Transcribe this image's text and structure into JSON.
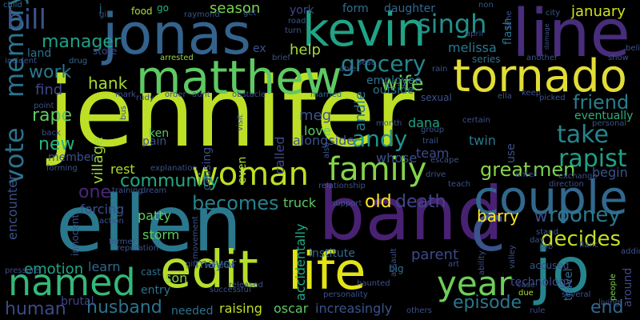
{
  "words": [
    {
      "text": "jennifer",
      "color": "#bddf26"
    },
    {
      "text": "ellen",
      "color": "#2a788e"
    },
    {
      "text": "band",
      "color": "#482173"
    },
    {
      "text": "jonas",
      "color": "#33638d"
    },
    {
      "text": "line",
      "color": "#472d7b"
    },
    {
      "text": "matthew",
      "color": "#5ec962"
    },
    {
      "text": "kevin",
      "color": "#20a386"
    },
    {
      "text": "tornado",
      "color": "#e1dd37"
    },
    {
      "text": "couple",
      "color": "#31688e"
    },
    {
      "text": "jo",
      "color": "#25858e"
    },
    {
      "text": "edit",
      "color": "#b5de2b"
    },
    {
      "text": "life",
      "color": "#e2e418"
    },
    {
      "text": "named",
      "color": "#35b779"
    },
    {
      "text": "woman",
      "color": "#bddf26"
    },
    {
      "text": "family",
      "color": "#84d44b"
    },
    {
      "text": "vote",
      "color": "#2c728e"
    },
    {
      "text": "memory",
      "color": "#2c728e"
    },
    {
      "text": "year",
      "color": "#6ece58"
    },
    {
      "text": "c",
      "color": "#3b528b"
    },
    {
      "text": "bill",
      "color": "#3b528b"
    },
    {
      "text": "grocery",
      "color": "#25858e"
    },
    {
      "text": "singh",
      "color": "#21918c"
    },
    {
      "text": "manager",
      "color": "#1fa187"
    },
    {
      "text": "work",
      "color": "#2a788e"
    },
    {
      "text": "help",
      "color": "#a5db36"
    },
    {
      "text": "wife",
      "color": "#73d056"
    },
    {
      "text": "hank",
      "color": "#a5db36"
    },
    {
      "text": "find",
      "color": "#3e4989"
    },
    {
      "text": "rape",
      "color": "#5ec962"
    },
    {
      "text": "new",
      "color": "#2ab07f"
    },
    {
      "text": "andy",
      "color": "#21918c"
    },
    {
      "text": "take",
      "color": "#25858e"
    },
    {
      "text": "rapist",
      "color": "#1fa187"
    },
    {
      "text": "friend",
      "color": "#277f8e"
    },
    {
      "text": "community",
      "color": "#22a884"
    },
    {
      "text": "village",
      "color": "#a0da39"
    },
    {
      "text": "great",
      "color": "#89d548"
    },
    {
      "text": "men",
      "color": "#7ad151"
    },
    {
      "text": "becomes",
      "color": "#26818e"
    },
    {
      "text": "encounter",
      "color": "#3b528b"
    },
    {
      "text": "one",
      "color": "#482878"
    },
    {
      "text": "old",
      "color": "#fde725"
    },
    {
      "text": "death",
      "color": "#414487"
    },
    {
      "text": "barry",
      "color": "#fde725"
    },
    {
      "text": "rooney",
      "color": "#2a788e"
    },
    {
      "text": "decides",
      "color": "#c2df23"
    },
    {
      "text": "w",
      "color": "#3b528b"
    },
    {
      "text": "human",
      "color": "#3e4989"
    },
    {
      "text": "husband",
      "color": "#2c728e"
    },
    {
      "text": "end",
      "color": "#31688e"
    },
    {
      "text": "episode",
      "color": "#2a788e"
    },
    {
      "text": "parent",
      "color": "#3e4989"
    },
    {
      "text": "raising",
      "color": "#c2df23"
    },
    {
      "text": "oscar",
      "color": "#5ec962"
    },
    {
      "text": "increasingly",
      "color": "#3b528b"
    },
    {
      "text": "january",
      "color": "#d0e11c"
    },
    {
      "text": "season",
      "color": "#7ad151"
    },
    {
      "text": "meg",
      "color": "#3b528b"
    },
    {
      "text": "andie",
      "color": "#2a788e"
    },
    {
      "text": "emotion",
      "color": "#20a386"
    },
    {
      "text": "forcing",
      "color": "#3b528b"
    },
    {
      "text": "patty",
      "color": "#5ec962"
    },
    {
      "text": "learn",
      "color": "#31688e"
    },
    {
      "text": "entry",
      "color": "#2c728e"
    },
    {
      "text": "needed",
      "color": "#2c728e"
    },
    {
      "text": "son",
      "color": "#84d44b"
    },
    {
      "text": "truck",
      "color": "#5ec962"
    },
    {
      "text": "institute",
      "color": "#31688e"
    },
    {
      "text": "accidentally",
      "color": "#22a884"
    },
    {
      "text": "begin",
      "color": "#3b528b"
    },
    {
      "text": "eventually",
      "color": "#2ab07f"
    },
    {
      "text": "love",
      "color": "#5ec962"
    },
    {
      "text": "dana",
      "color": "#20a386"
    },
    {
      "text": "team",
      "color": "#3e4989"
    },
    {
      "text": "twin",
      "color": "#2a788e"
    },
    {
      "text": "called",
      "color": "#3e4989"
    },
    {
      "text": "causing",
      "color": "#3b528b"
    },
    {
      "text": "alongside",
      "color": "#3b528b"
    },
    {
      "text": "even",
      "color": "#addc30"
    },
    {
      "text": "member",
      "color": "#3b528b"
    },
    {
      "text": "whose",
      "color": "#3b528b"
    },
    {
      "text": "river",
      "color": "#3e4989"
    },
    {
      "text": "main",
      "color": "#440154"
    },
    {
      "text": "beyond",
      "color": "#b5de2b"
    },
    {
      "text": "meet",
      "color": "#31688e"
    },
    {
      "text": "honey",
      "color": "#2c728e"
    },
    {
      "text": "ken",
      "color": "#5ec962"
    },
    {
      "text": "pain",
      "color": "#3b528b"
    },
    {
      "text": "rest",
      "color": "#addc30"
    },
    {
      "text": "mayor",
      "color": "#2c728e"
    },
    {
      "text": "storm",
      "color": "#5ec962"
    },
    {
      "text": "land",
      "color": "#2c728e"
    },
    {
      "text": "store",
      "color": "#3e4989"
    },
    {
      "text": "j",
      "color": "#2a788e"
    },
    {
      "text": "food",
      "color": "#addc30"
    },
    {
      "text": "go",
      "color": "#2ab07f"
    },
    {
      "text": "ex",
      "color": "#3b528b"
    },
    {
      "text": "york",
      "color": "#3e4989"
    },
    {
      "text": "form",
      "color": "#2c728e"
    },
    {
      "text": "daughter",
      "color": "#31688e"
    },
    {
      "text": "flash",
      "color": "#2c728e"
    },
    {
      "text": "melissa",
      "color": "#2a788e"
    },
    {
      "text": "employee",
      "color": "#2c728e"
    },
    {
      "text": "outside",
      "color": "#2c728e"
    },
    {
      "text": "use",
      "color": "#3b528b"
    },
    {
      "text": "travel",
      "color": "#31688e"
    },
    {
      "text": "around",
      "color": "#3e4989"
    },
    {
      "text": "people",
      "color": "#7ad151"
    },
    {
      "text": "accused",
      "color": "#3b528b"
    },
    {
      "text": "trial",
      "color": "#3b528b"
    },
    {
      "text": "scene",
      "color": "#fde725"
    },
    {
      "text": "technology",
      "color": "#3e4989"
    },
    {
      "text": "brutal",
      "color": "#414487"
    },
    {
      "text": "child",
      "color": "#31688e"
    },
    {
      "text": "drug",
      "color": "#31688e"
    },
    {
      "text": "arrested",
      "color": "#8fd744"
    },
    {
      "text": "sexual",
      "color": "#3b528b"
    },
    {
      "text": "innocent",
      "color": "#3b528b"
    },
    {
      "text": "cast",
      "color": "#2c728e"
    },
    {
      "text": "movement",
      "color": "#3b528b"
    },
    {
      "text": "reputation",
      "color": "#3b528b"
    },
    {
      "text": "series",
      "color": "#2c728e"
    },
    {
      "text": "action",
      "color": "#3b528b"
    },
    {
      "text": "dream",
      "color": "#3b528b"
    },
    {
      "text": "assault",
      "color": "#3b528b"
    },
    {
      "text": "valley",
      "color": "#3b528b"
    },
    {
      "text": "big",
      "color": "#2c728e"
    },
    {
      "text": "others",
      "color": "#3b528b"
    },
    {
      "text": "rule",
      "color": "#3e4989"
    },
    {
      "text": "several",
      "color": "#3b528b"
    },
    {
      "text": "case",
      "color": "#3b528b"
    },
    {
      "text": "due",
      "color": "#addc30"
    },
    {
      "text": "job",
      "color": "#3b528b"
    },
    {
      "text": "fianc",
      "color": "#3b528b"
    },
    {
      "text": "day",
      "color": "#3b528b"
    },
    {
      "text": "stand",
      "color": "#3b528b"
    },
    {
      "text": "addict",
      "color": "#3b528b"
    },
    {
      "text": "art",
      "color": "#3b528b"
    },
    {
      "text": "gift",
      "color": "#3b528b"
    },
    {
      "text": "pressure",
      "color": "#3e4989"
    },
    {
      "text": "former",
      "color": "#3b528b"
    },
    {
      "text": "window",
      "color": "#3b528b"
    },
    {
      "text": "successful",
      "color": "#3b528b"
    },
    {
      "text": "released",
      "color": "#3b528b"
    },
    {
      "text": "haunted",
      "color": "#3b528b"
    },
    {
      "text": "personality",
      "color": "#3b528b"
    },
    {
      "text": "living",
      "color": "#3b528b"
    },
    {
      "text": "order",
      "color": "#3b528b"
    },
    {
      "text": "aunt",
      "color": "#3b528b"
    },
    {
      "text": "obstacle",
      "color": "#3b528b"
    },
    {
      "text": "married",
      "color": "#2c728e"
    },
    {
      "text": "brief",
      "color": "#3b528b"
    },
    {
      "text": "another",
      "color": "#3b528b"
    },
    {
      "text": "show",
      "color": "#3b528b"
    },
    {
      "text": "ella",
      "color": "#3b528b"
    },
    {
      "text": "keep",
      "color": "#3b528b"
    },
    {
      "text": "picked",
      "color": "#3b528b"
    },
    {
      "text": "non",
      "color": "#3b528b"
    },
    {
      "text": "gil",
      "color": "#3b528b"
    },
    {
      "text": "raymond",
      "color": "#3b528b"
    },
    {
      "text": "get",
      "color": "#3b528b"
    },
    {
      "text": "road",
      "color": "#3b528b"
    },
    {
      "text": "turn",
      "color": "#3b528b"
    },
    {
      "text": "april",
      "color": "#3b528b"
    },
    {
      "text": "city",
      "color": "#3b528b"
    },
    {
      "text": "belief",
      "color": "#3b528b"
    },
    {
      "text": "incident",
      "color": "#3b528b"
    },
    {
      "text": "able",
      "color": "#3b528b"
    },
    {
      "text": "best",
      "color": "#3b528b"
    },
    {
      "text": "rain",
      "color": "#3b528b"
    },
    {
      "text": "point",
      "color": "#3b528b"
    },
    {
      "text": "mark",
      "color": "#3b528b"
    },
    {
      "text": "rudy",
      "color": "#3b528b"
    },
    {
      "text": "visit",
      "color": "#3b528b"
    },
    {
      "text": "month",
      "color": "#3b528b"
    },
    {
      "text": "certain",
      "color": "#3b528b"
    },
    {
      "text": "group",
      "color": "#3b528b"
    },
    {
      "text": "trail",
      "color": "#3b528b"
    },
    {
      "text": "escape",
      "color": "#3b528b"
    },
    {
      "text": "personal",
      "color": "#3b528b"
    },
    {
      "text": "back",
      "color": "#3b528b"
    },
    {
      "text": "forming",
      "color": "#3b528b"
    },
    {
      "text": "explanation",
      "color": "#3b528b"
    },
    {
      "text": "teach",
      "color": "#3b528b"
    },
    {
      "text": "direction",
      "color": "#3b528b"
    },
    {
      "text": "exchange",
      "color": "#3b528b"
    },
    {
      "text": "enter",
      "color": "#3b528b"
    },
    {
      "text": "training",
      "color": "#3b528b"
    },
    {
      "text": "support",
      "color": "#3b528b"
    },
    {
      "text": "drive",
      "color": "#3b528b"
    },
    {
      "text": "relationship",
      "color": "#3b528b"
    },
    {
      "text": "ability",
      "color": "#3b528b"
    },
    {
      "text": "also",
      "color": "#3b528b"
    },
    {
      "text": "bus",
      "color": "#3b528b"
    },
    {
      "text": "time",
      "color": "#3b528b"
    },
    {
      "text": "damage",
      "color": "#3b528b"
    }
  ]
}
